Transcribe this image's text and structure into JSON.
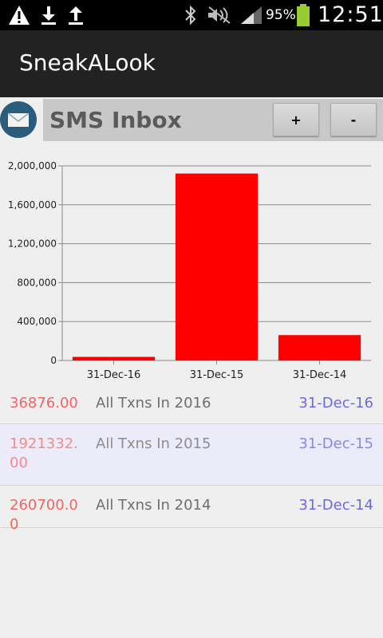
{
  "status_bar": {
    "battery_pct": "95%",
    "clock": "12:51",
    "icons": [
      "warning-icon",
      "download-icon",
      "upload-icon",
      "bluetooth-icon",
      "mute-icon",
      "signal-icon",
      "battery-icon"
    ]
  },
  "app": {
    "title": "SneakALook"
  },
  "header": {
    "title": "SMS Inbox",
    "plus_label": "+",
    "minus_label": "-"
  },
  "colors": {
    "bar": "#ff0000",
    "amount": "#f16565",
    "date": "#6b6bdd",
    "action_bar": "#222222"
  },
  "chart_data": {
    "type": "bar",
    "categories": [
      "31-Dec-16",
      "31-Dec-15",
      "31-Dec-14"
    ],
    "values": [
      36876.0,
      1921332.0,
      260700.0
    ],
    "ylim": [
      0,
      2000000
    ],
    "yticks": [
      "0",
      "400,000",
      "800,000",
      "1,200,000",
      "1,600,000",
      "2,000,000"
    ],
    "ytick_values": [
      0,
      400000,
      800000,
      1200000,
      1600000,
      2000000
    ],
    "grid": true,
    "bar_color": "#ff0000"
  },
  "transactions": [
    {
      "amount": "36876.00",
      "description": "All Txns In 2016",
      "date": "31-Dec-16"
    },
    {
      "amount": "1921332.00",
      "description": "All Txns In 2015",
      "date": "31-Dec-15"
    },
    {
      "amount": "260700.00",
      "description": "All Txns In 2014",
      "date": "31-Dec-14"
    }
  ]
}
